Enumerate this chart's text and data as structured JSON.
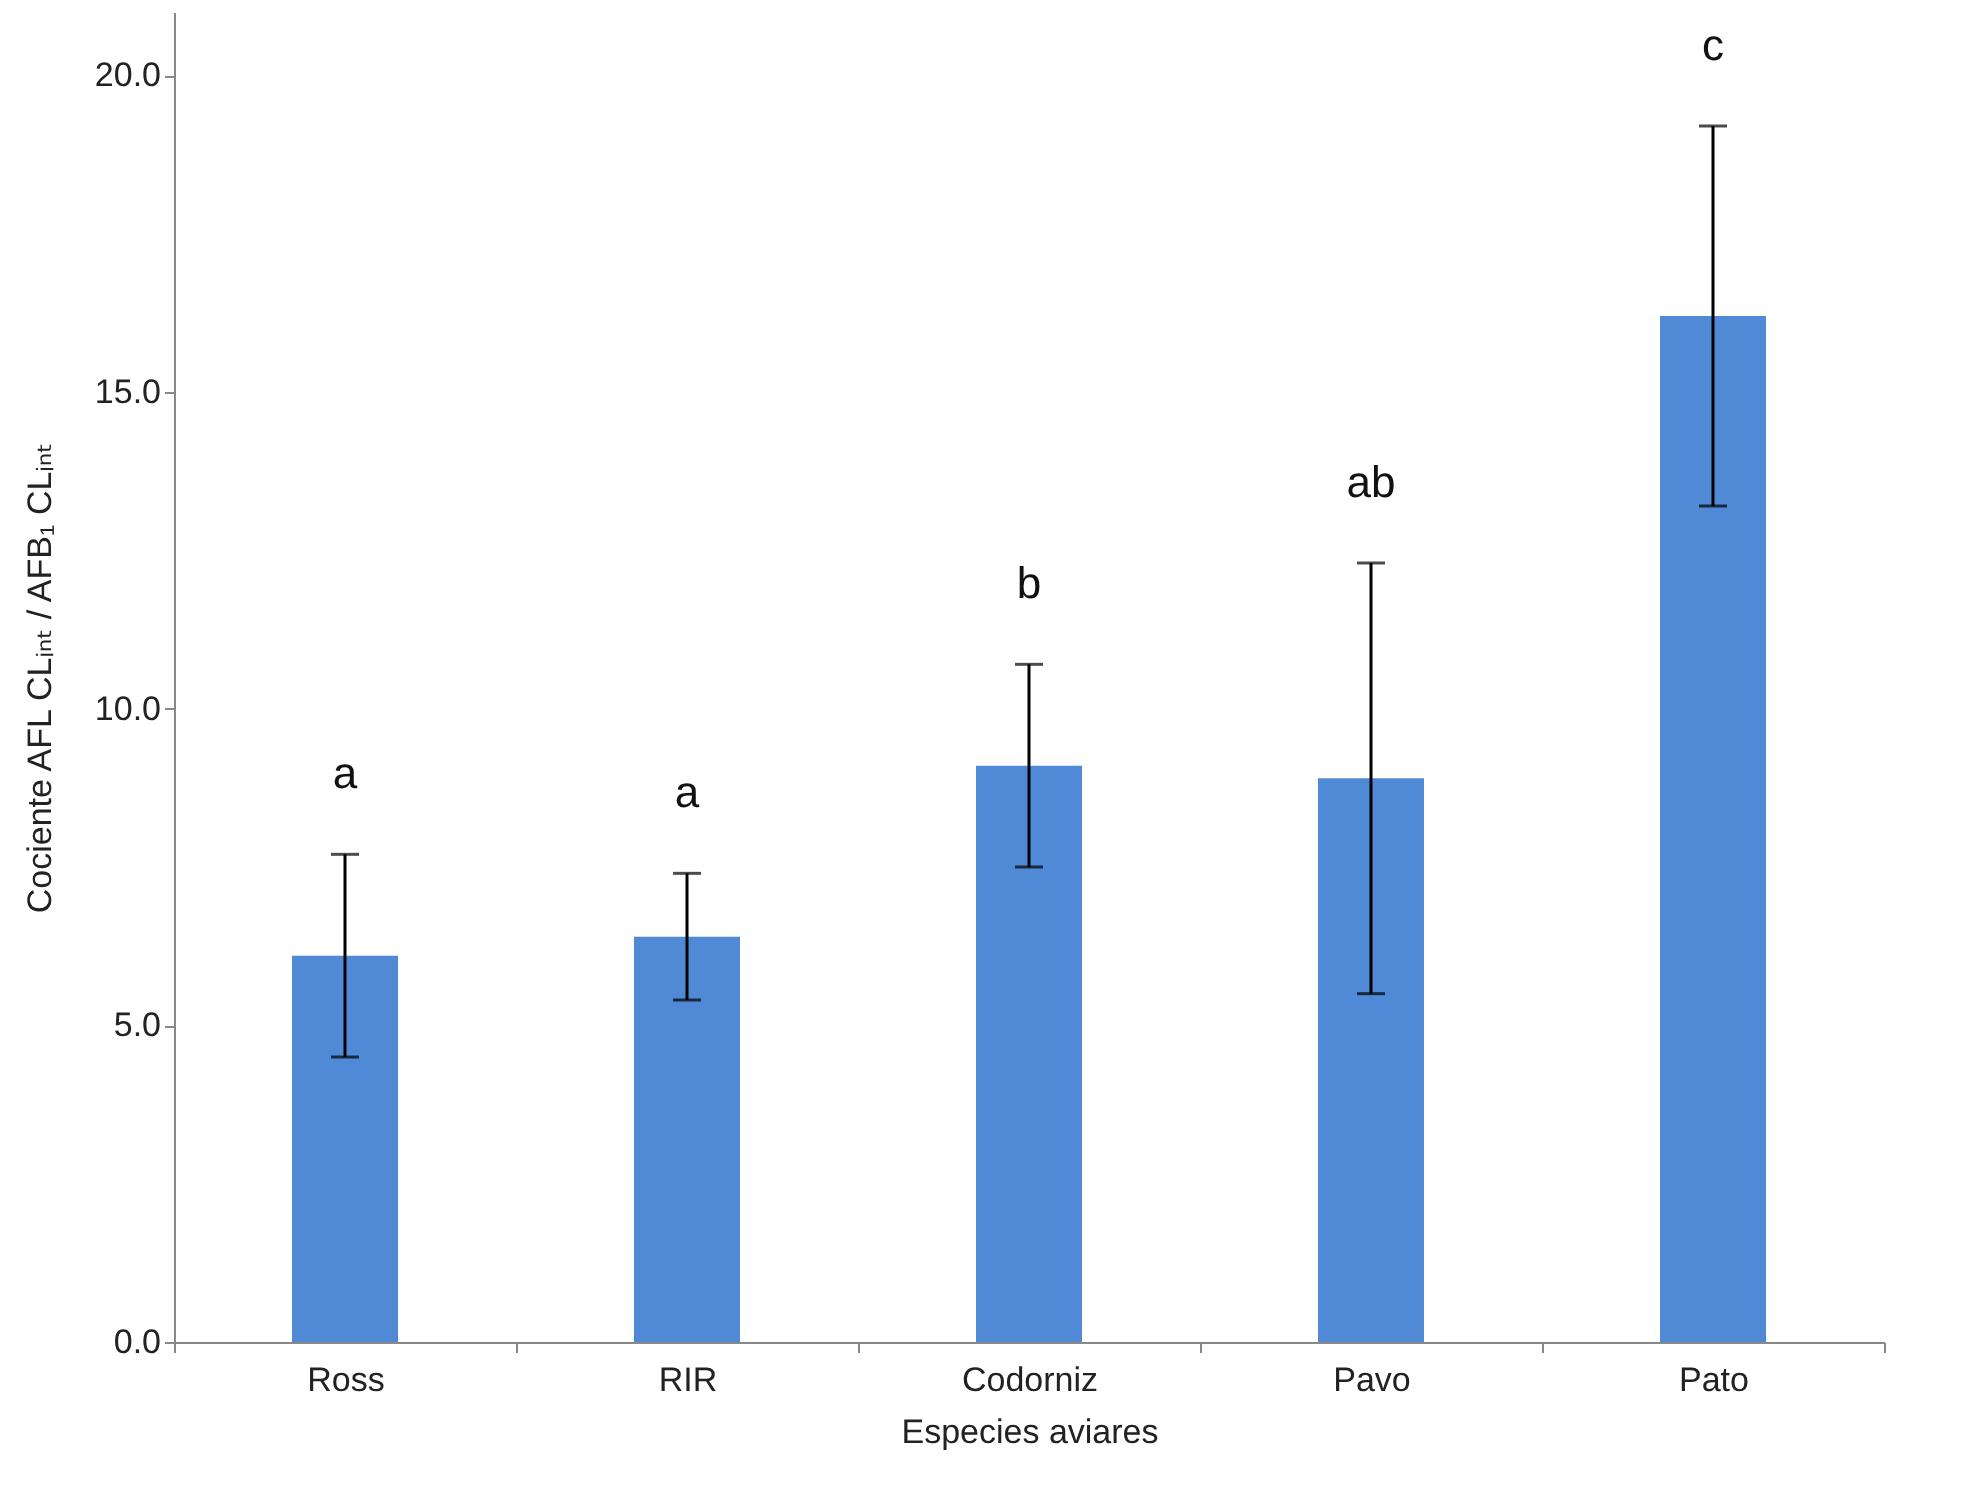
{
  "chart_data": {
    "type": "bar",
    "xlabel": "Especies aviares",
    "ylabel": "Cociente AFL CLᵢₙₜ / AFB₁ CLᵢₙₜ",
    "categories": [
      "Ross",
      "RIR",
      "Codorniz",
      "Pavo",
      "Pato"
    ],
    "values": [
      6.1,
      6.4,
      9.1,
      8.9,
      16.2
    ],
    "errors": [
      1.6,
      1.0,
      1.6,
      3.4,
      3.0
    ],
    "color": "#5089d6",
    "ylim": [
      0,
      21
    ],
    "yticks": [
      {
        "value": 0,
        "label": "0.0"
      },
      {
        "value": 5,
        "label": "5.0"
      },
      {
        "value": 10,
        "label": "10.0"
      },
      {
        "value": 15,
        "label": "15.0"
      },
      {
        "value": 20,
        "label": "20.0"
      }
    ],
    "grid": false,
    "annotations": [
      "a",
      "a",
      "b",
      "ab",
      "c"
    ]
  }
}
